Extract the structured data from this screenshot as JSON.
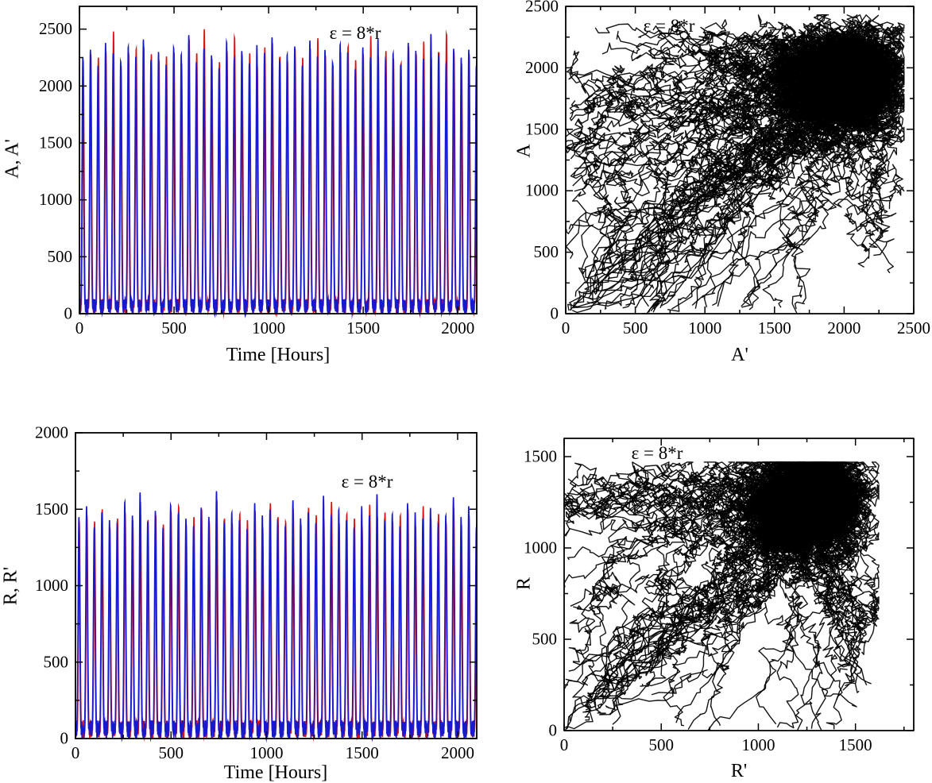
{
  "figure": {
    "background": "#ffffff",
    "frame_color": "#000000",
    "tick_label_font_px": 21
  },
  "chart_data": {
    "description": "Four-panel figure: time courses of coupled oscillator variables A,A' and R,R' (blue = unprimed, red = primed) and phase-plane trajectories A vs A' and R vs R', coupling epsilon = 8*r.",
    "charts": [
      {
        "id": "A-timeseries",
        "type": "timeseries",
        "annotation": "ε = 8*r",
        "xlabel": "Time [Hours]",
        "ylabel": "A, A'",
        "xlim": [
          0,
          2100
        ],
        "ylim": [
          0,
          2700
        ],
        "xticks": [
          0,
          500,
          1000,
          1500,
          2000
        ],
        "yticks": [
          0,
          500,
          1000,
          1500,
          2000,
          2500
        ],
        "minor_x": 250,
        "minor_y": 250,
        "period_hours": 40,
        "n_cycles": 50,
        "baseline_noise_max": 130,
        "seed": 3,
        "series": [
          {
            "name": "A'",
            "color": "#d81414",
            "phase": 2.0,
            "peaks": [
              2200,
              2280,
              2250,
              2300,
              2480,
              2180,
              2290,
              2330,
              2350,
              2280,
              2230,
              2260,
              2300,
              2200,
              2380,
              2290,
              2500,
              2240,
              2210,
              2310,
              2430,
              2250,
              2290,
              2180,
              2340,
              2380,
              2260,
              2220,
              2300,
              2250,
              2330,
              2420,
              2270,
              2190,
              2300,
              2350,
              2230,
              2280,
              2440,
              2260,
              2310,
              2240,
              2200,
              2350,
              2280,
              2390,
              2250,
              2300,
              2460,
              2270
            ]
          },
          {
            "name": "A",
            "color": "#1818cc",
            "phase": 0.0,
            "peaks": [
              2250,
              2320,
              2180,
              2380,
              2290,
              2220,
              2350,
              2260,
              2410,
              2230,
              2300,
              2190,
              2340,
              2280,
              2450,
              2210,
              2330,
              2270,
              2160,
              2390,
              2240,
              2310,
              2200,
              2360,
              2290,
              2430,
              2220,
              2280,
              2350,
              2180,
              2400,
              2260,
              2320,
              2210,
              2370,
              2300,
              2150,
              2340,
              2250,
              2420,
              2230,
              2290,
              2190,
              2380,
              2310,
              2240,
              2460,
              2270,
              2200,
              2330
            ]
          }
        ]
      },
      {
        "id": "A-phase",
        "type": "phase",
        "annotation": "ε = 8*r",
        "xlabel": "A'",
        "ylabel": "A",
        "xlim": [
          0,
          2500
        ],
        "ylim": [
          0,
          2500
        ],
        "xticks": [
          0,
          500,
          1000,
          1500,
          2000,
          2500
        ],
        "yticks": [
          0,
          500,
          1000,
          1500,
          2000,
          2500
        ],
        "minor_x": 250,
        "minor_y": 250,
        "trajectories": {
          "count": 100,
          "color": "#000000",
          "attractor": [
            2060,
            1960
          ],
          "attractor_spread": 150,
          "max_x": 2430,
          "max_y": 2430,
          "seed": 7
        }
      },
      {
        "id": "R-timeseries",
        "type": "timeseries",
        "annotation": "ε = 8*r",
        "xlabel": "Time [Hours]",
        "ylabel": "R, R'",
        "xlim": [
          0,
          2100
        ],
        "ylim": [
          0,
          2000
        ],
        "xticks": [
          0,
          500,
          1000,
          1500,
          2000
        ],
        "yticks": [
          0,
          500,
          1000,
          1500,
          2000
        ],
        "minor_x": 250,
        "minor_y": 250,
        "period_hours": 40,
        "n_cycles": 50,
        "baseline_noise_max": 120,
        "seed": 5,
        "series": [
          {
            "name": "R'",
            "color": "#d81414",
            "phase": 2.0,
            "peaks": [
              1400,
              1460,
              1420,
              1500,
              1380,
              1440,
              1480,
              1410,
              1550,
              1430,
              1460,
              1400,
              1490,
              1520,
              1380,
              1450,
              1500,
              1420,
              1560,
              1440,
              1410,
              1470,
              1430,
              1490,
              1380,
              1540,
              1450,
              1420,
              1480,
              1400,
              1510,
              1460,
              1430,
              1550,
              1410,
              1470,
              1440,
              1390,
              1530,
              1450,
              1480,
              1420,
              1460,
              1500,
              1390,
              1520,
              1440,
              1470,
              1410,
              1490
            ]
          },
          {
            "name": "R",
            "color": "#1818cc",
            "phase": 0.0,
            "peaks": [
              1450,
              1520,
              1380,
              1480,
              1430,
              1400,
              1550,
              1460,
              1610,
              1420,
              1490,
              1380,
              1530,
              1470,
              1440,
              1390,
              1510,
              1450,
              1620,
              1410,
              1480,
              1430,
              1370,
              1540,
              1460,
              1500,
              1420,
              1390,
              1560,
              1440,
              1480,
              1410,
              1590,
              1450,
              1500,
              1430,
              1380,
              1520,
              1460,
              1600,
              1420,
              1470,
              1390,
              1540,
              1480,
              1440,
              1510,
              1400,
              1460,
              1580
            ]
          }
        ]
      },
      {
        "id": "R-phase",
        "type": "phase",
        "annotation": "ε = 8*r",
        "xlabel": "R'",
        "ylabel": "R",
        "xlim": [
          0,
          1800
        ],
        "ylim": [
          0,
          1600
        ],
        "xticks": [
          0,
          500,
          1000,
          1500
        ],
        "yticks": [
          0,
          500,
          1000,
          1500
        ],
        "minor_x": 250,
        "minor_y": 250,
        "trajectories": {
          "count": 85,
          "color": "#000000",
          "attractor": [
            1300,
            1270
          ],
          "attractor_spread": 110,
          "max_x": 1620,
          "max_y": 1470,
          "seed": 11
        }
      }
    ]
  }
}
